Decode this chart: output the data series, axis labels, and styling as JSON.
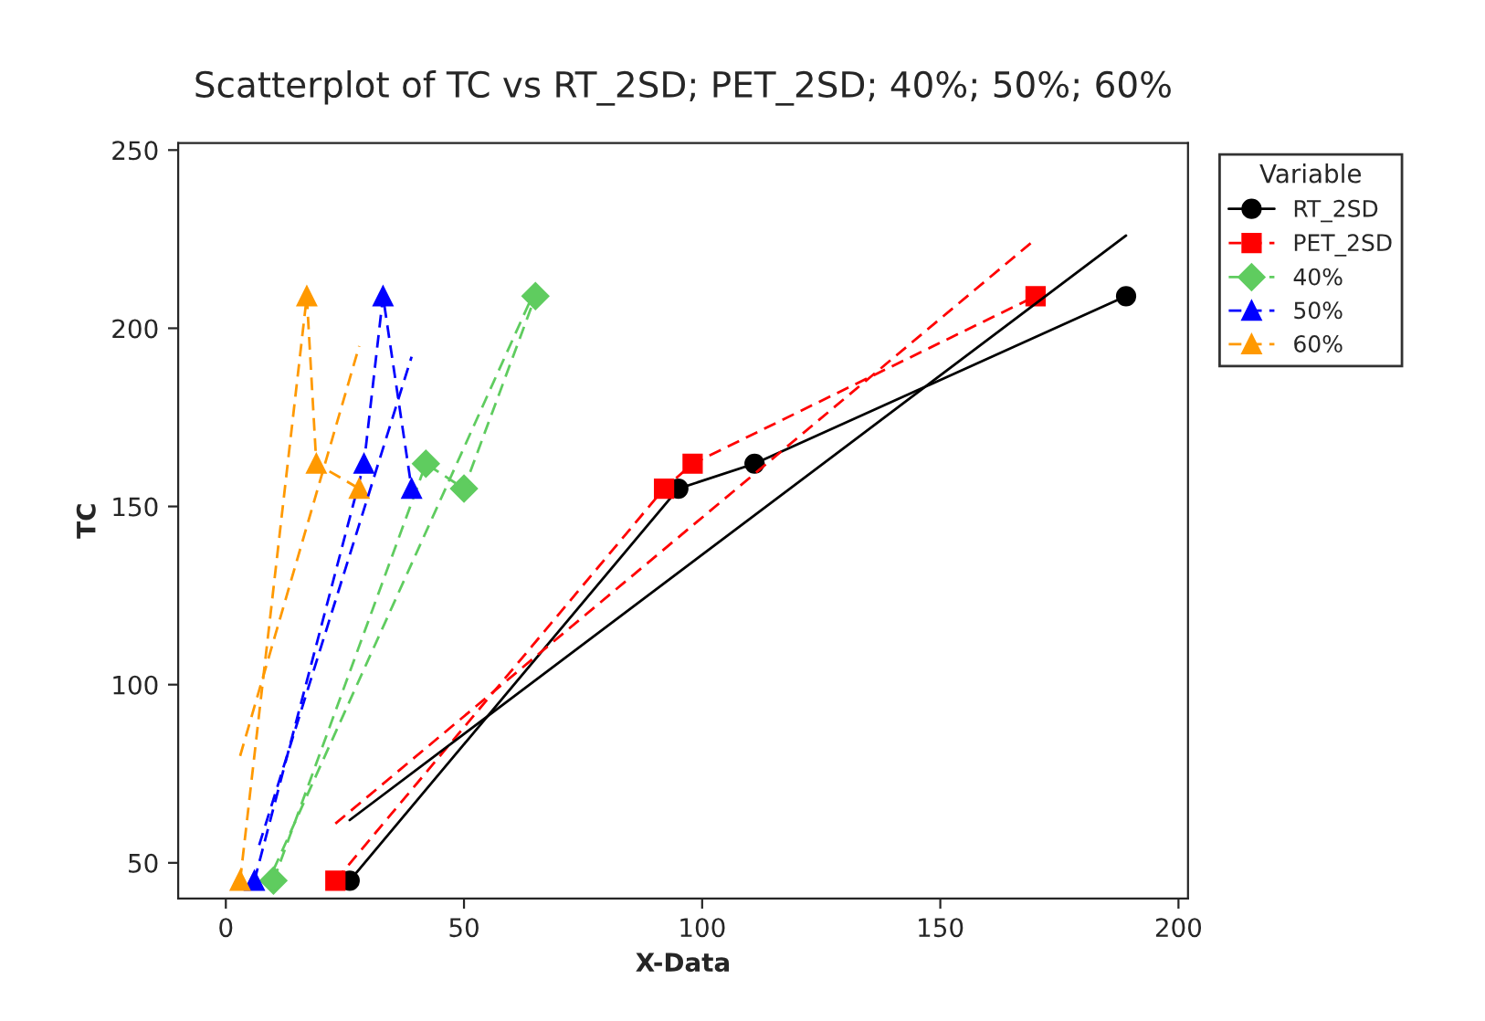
{
  "chart_data": {
    "type": "line",
    "title": "Scatterplot of TC vs RT_2SD; PET_2SD; 40%; 50%; 60%",
    "xlabel": "X-Data",
    "ylabel": "TC",
    "legend_title": "Variable",
    "legend": "right",
    "xlim": [
      -10,
      202
    ],
    "ylim": [
      40,
      252
    ],
    "xticks": [
      0,
      50,
      100,
      150,
      200
    ],
    "yticks": [
      50,
      100,
      150,
      200,
      250
    ],
    "grid": false,
    "series": [
      {
        "name": "RT_2SD",
        "color": "#000000",
        "x": [
          26,
          95,
          111,
          189
        ],
        "values": [
          45,
          155,
          162,
          209
        ],
        "marker": "circle",
        "line_style": "solid"
      },
      {
        "name": "PET_2SD",
        "color": "#ff0000",
        "x": [
          23,
          92,
          98,
          170
        ],
        "values": [
          45,
          155,
          162,
          209
        ],
        "marker": "square",
        "line_style": "dashed"
      },
      {
        "name": "40%",
        "color": "#5fcc5f",
        "x": [
          10,
          42,
          50,
          65
        ],
        "values": [
          45,
          162,
          155,
          209
        ],
        "marker": "diamond",
        "line_style": "dashed"
      },
      {
        "name": "50%",
        "color": "#0000ff",
        "x": [
          6,
          29,
          33,
          39
        ],
        "values": [
          45,
          162,
          209,
          155
        ],
        "marker": "triangle",
        "line_style": "dashed"
      },
      {
        "name": "60%",
        "color": "#ff9900",
        "x": [
          3,
          17,
          19,
          28
        ],
        "values": [
          45,
          209,
          162,
          155
        ],
        "marker": "triangle",
        "line_style": "dashed"
      },
      {
        "type": "line",
        "color": "#000000",
        "x": [
          26,
          189
        ],
        "values": [
          62,
          226
        ],
        "marker": "none",
        "line_style": "solid"
      },
      {
        "type": "line",
        "color": "#ff0000",
        "x": [
          23,
          170
        ],
        "values": [
          61,
          225
        ],
        "marker": "none",
        "line_style": "dashed"
      },
      {
        "type": "line",
        "color": "#5fcc5f",
        "x": [
          10,
          64
        ],
        "values": [
          48,
          208
        ],
        "marker": "none",
        "line_style": "dashed"
      },
      {
        "type": "line",
        "color": "#0000ff",
        "x": [
          7,
          39
        ],
        "values": [
          55,
          192
        ],
        "marker": "none",
        "line_style": "dashed"
      },
      {
        "type": "line",
        "color": "#ff9900",
        "x": [
          3,
          28
        ],
        "values": [
          80,
          195
        ],
        "marker": "none",
        "line_style": "dashed"
      }
    ]
  }
}
